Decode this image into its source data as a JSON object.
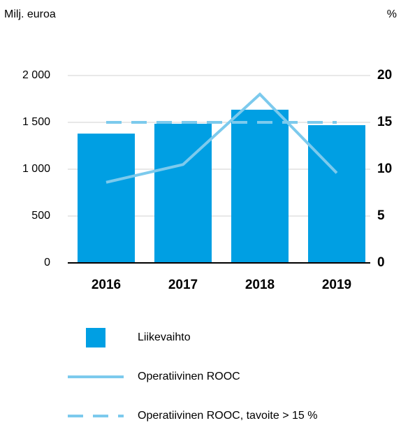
{
  "chart_data": {
    "type": "combo",
    "y_label": "Milj. euroa",
    "y2_label": "%",
    "categories": [
      "2016",
      "2017",
      "2018",
      "2019"
    ],
    "series": [
      {
        "name": "Liikevaihto",
        "type": "bar",
        "color": "#009fe3",
        "axis": "y",
        "values": [
          1380,
          1485,
          1635,
          1470
        ]
      },
      {
        "name": "Operatiivinen ROOC",
        "type": "line",
        "color": "#7ccaed",
        "axis": "y2",
        "values": [
          8.6,
          10.5,
          18.0,
          9.6
        ]
      },
      {
        "name": "Operatiivinen ROOC, tavoite > 15 %",
        "type": "line",
        "dashed": true,
        "color": "#7ccaed",
        "axis": "y2",
        "values": [
          15,
          15,
          15,
          15
        ]
      }
    ],
    "ylim": [
      0,
      2000
    ],
    "yticks": [
      0,
      500,
      {
        "value": 1000,
        "label": "1 000"
      },
      {
        "value": 1500,
        "label": "1 500"
      },
      {
        "value": 2000,
        "label": "2 000"
      }
    ],
    "y2lim": [
      0,
      20
    ],
    "y2ticks": [
      0,
      5,
      10,
      15,
      20
    ],
    "grid": true
  }
}
